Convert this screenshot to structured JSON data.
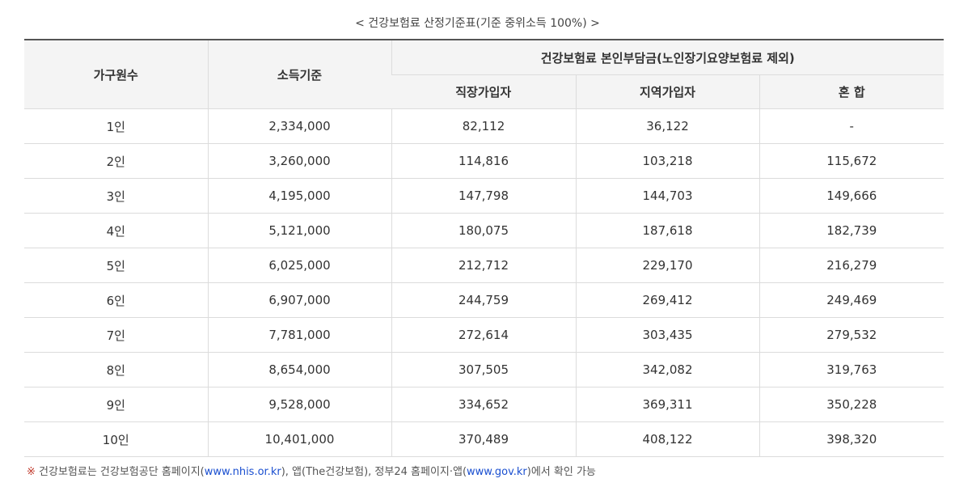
{
  "caption": "< 건강보험료 산정기준표(기준 중위소득 100%) >",
  "headers": {
    "household": "가구원수",
    "income": "소득기준",
    "premium_group": "건강보험료 본인부담금(노인장기요양보험료 제외)",
    "employee": "직장가입자",
    "regional": "지역가입자",
    "mixed": "혼 합"
  },
  "rows": [
    {
      "household": "1인",
      "income": "2,334,000",
      "employee": "82,112",
      "regional": "36,122",
      "mixed": "-"
    },
    {
      "household": "2인",
      "income": "3,260,000",
      "employee": "114,816",
      "regional": "103,218",
      "mixed": "115,672"
    },
    {
      "household": "3인",
      "income": "4,195,000",
      "employee": "147,798",
      "regional": "144,703",
      "mixed": "149,666"
    },
    {
      "household": "4인",
      "income": "5,121,000",
      "employee": "180,075",
      "regional": "187,618",
      "mixed": "182,739"
    },
    {
      "household": "5인",
      "income": "6,025,000",
      "employee": "212,712",
      "regional": "229,170",
      "mixed": "216,279"
    },
    {
      "household": "6인",
      "income": "6,907,000",
      "employee": "244,759",
      "regional": "269,412",
      "mixed": "249,469"
    },
    {
      "household": "7인",
      "income": "7,781,000",
      "employee": "272,614",
      "regional": "303,435",
      "mixed": "279,532"
    },
    {
      "household": "8인",
      "income": "8,654,000",
      "employee": "307,505",
      "regional": "342,082",
      "mixed": "319,763"
    },
    {
      "household": "9인",
      "income": "9,528,000",
      "employee": "334,652",
      "regional": "369,311",
      "mixed": "350,228"
    },
    {
      "household": "10인",
      "income": "10,401,000",
      "employee": "370,489",
      "regional": "408,122",
      "mixed": "398,320"
    }
  ],
  "footnote": {
    "mark": "※",
    "text1": " 건강보험료는 건강보험공단 홈페이지(",
    "link1": "www.nhis.or.kr",
    "text2": "), 앱(The건강보험), 정부24 홈페이지·앱(",
    "link2": "www.gov.kr",
    "text3": ")에서 확인 가능"
  }
}
